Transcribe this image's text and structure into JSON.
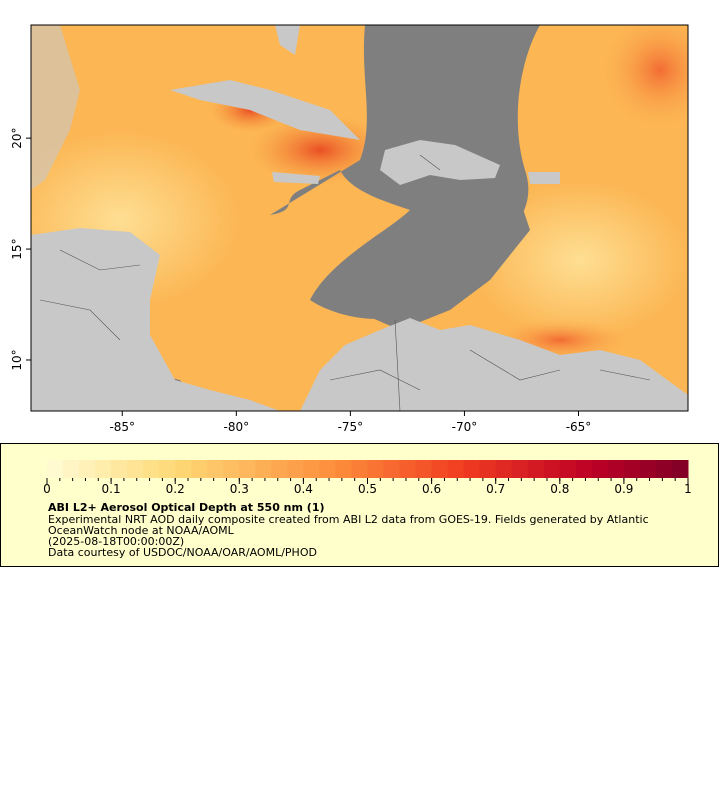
{
  "map": {
    "xlim": [
      -89,
      -60.2
    ],
    "ylim": [
      7.7,
      25.1
    ],
    "xticks": [
      {
        "value": -85,
        "label": "-85°"
      },
      {
        "value": -80,
        "label": "-80°"
      },
      {
        "value": -75,
        "label": "-75°"
      },
      {
        "value": -70,
        "label": "-70°"
      },
      {
        "value": -65,
        "label": "-65°"
      }
    ],
    "yticks": [
      {
        "value": 10,
        "label": "10°"
      },
      {
        "value": 15,
        "label": "15°"
      },
      {
        "value": 20,
        "label": "20°"
      }
    ]
  },
  "colorbar": {
    "lim": [
      0,
      1
    ],
    "ticks": [
      0,
      0.1,
      0.2,
      0.3,
      0.4,
      0.5,
      0.6,
      0.7,
      0.8,
      0.9,
      1
    ],
    "title": "ABI L2+ Aerosol Optical Depth at 550 nm (1)",
    "lines": [
      "Experimental NRT AOD daily composite created from ABI L2 data from GOES-19. Fields generated by Atlantic",
      "OceanWatch node at NOAA/AOML",
      "(2025-08-18T00:00:00Z)",
      "Data courtesy of USDOC/NOAA/OAR/AOML/PHOD"
    ]
  }
}
